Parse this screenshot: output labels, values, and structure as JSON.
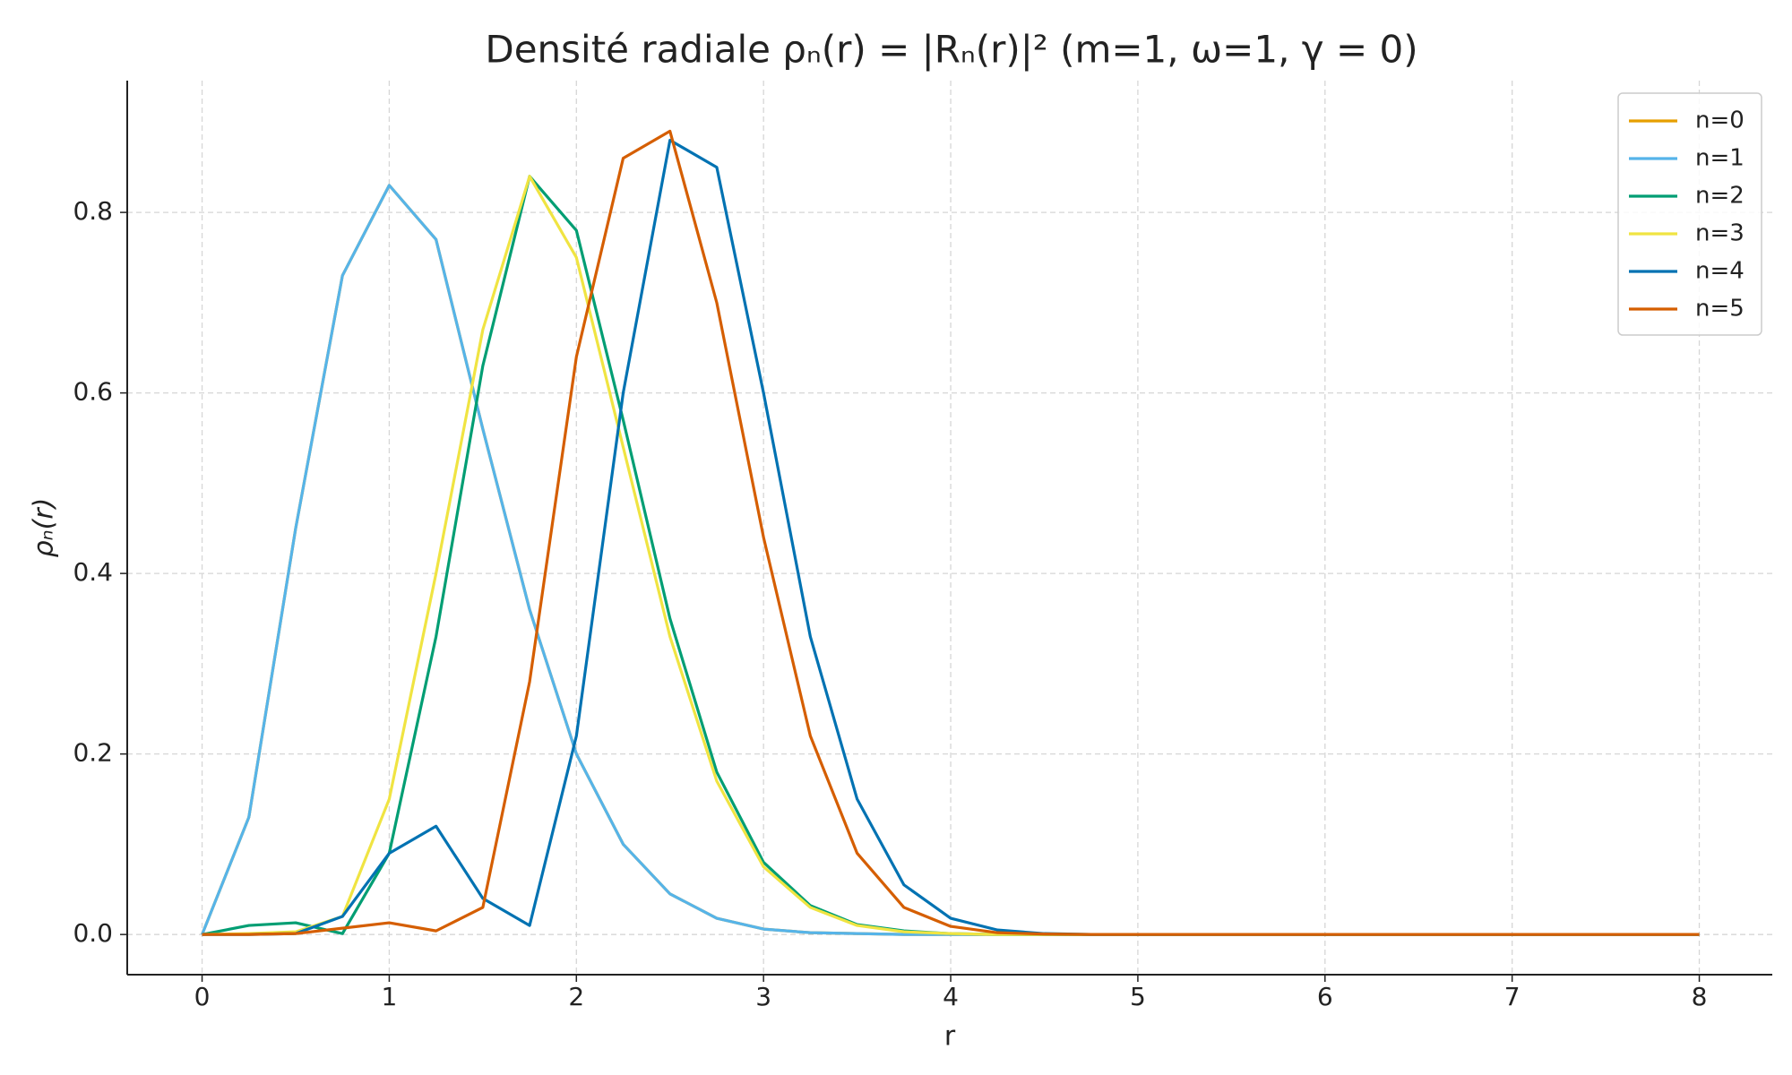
{
  "chart_data": {
    "type": "line",
    "title": "Densité radiale ρₙ(r) = |Rₙ(r)|² (m=1, ω=1, γ = 0)",
    "x_label": "r",
    "y_label": "ρₙ(r)",
    "x": [
      0,
      0.25,
      0.5,
      0.75,
      1,
      1.25,
      1.5,
      1.75,
      2,
      2.25,
      2.5,
      2.75,
      3,
      3.25,
      3.5,
      3.75,
      4,
      4.25,
      4.5,
      4.75,
      5,
      5.25,
      5.5,
      5.75,
      6,
      6.25,
      6.5,
      6.75,
      7,
      7.25,
      7.5,
      7.75,
      8
    ],
    "series": [
      {
        "name": "n=0",
        "color": "#E69F00",
        "values": [
          0,
          0.13,
          0.45,
          0.73,
          0.83,
          0.77,
          0.56,
          0.36,
          0.2,
          0.1,
          0.045,
          0.018,
          0.006,
          0.002,
          0.001,
          0,
          0,
          0,
          0,
          0,
          0,
          0,
          0,
          0,
          0,
          0,
          0,
          0,
          0,
          0,
          0,
          0,
          0
        ]
      },
      {
        "name": "n=1",
        "color": "#56B4E9",
        "values": [
          0,
          0.13,
          0.45,
          0.73,
          0.83,
          0.77,
          0.56,
          0.36,
          0.2,
          0.1,
          0.045,
          0.018,
          0.006,
          0.002,
          0.001,
          0,
          0,
          0,
          0,
          0,
          0,
          0,
          0,
          0,
          0,
          0,
          0,
          0,
          0,
          0,
          0,
          0,
          0
        ]
      },
      {
        "name": "n=2",
        "color": "#009E73",
        "values": [
          0,
          0.01,
          0.013,
          0.001,
          0.09,
          0.33,
          0.63,
          0.84,
          0.78,
          0.57,
          0.35,
          0.18,
          0.08,
          0.032,
          0.011,
          0.004,
          0.001,
          0,
          0,
          0,
          0,
          0,
          0,
          0,
          0,
          0,
          0,
          0,
          0,
          0,
          0,
          0,
          0
        ]
      },
      {
        "name": "n=3",
        "color": "#F0E442",
        "values": [
          0,
          0.001,
          0.003,
          0.02,
          0.15,
          0.4,
          0.67,
          0.84,
          0.75,
          0.54,
          0.33,
          0.17,
          0.075,
          0.03,
          0.01,
          0.003,
          0.001,
          0,
          0,
          0,
          0,
          0,
          0,
          0,
          0,
          0,
          0,
          0,
          0,
          0,
          0,
          0,
          0
        ]
      },
      {
        "name": "n=4",
        "color": "#0072B2",
        "values": [
          0,
          0,
          0.001,
          0.02,
          0.09,
          0.12,
          0.04,
          0.01,
          0.22,
          0.6,
          0.88,
          0.85,
          0.6,
          0.33,
          0.15,
          0.055,
          0.018,
          0.005,
          0.001,
          0,
          0,
          0,
          0,
          0,
          0,
          0,
          0,
          0,
          0,
          0,
          0,
          0,
          0
        ]
      },
      {
        "name": "n=5",
        "color": "#D55E00",
        "values": [
          0,
          0,
          0.001,
          0.007,
          0.013,
          0.004,
          0.03,
          0.28,
          0.64,
          0.86,
          0.89,
          0.7,
          0.44,
          0.22,
          0.09,
          0.03,
          0.009,
          0.002,
          0.0005,
          0,
          0,
          0,
          0,
          0,
          0,
          0,
          0,
          0,
          0,
          0,
          0,
          0,
          0
        ]
      }
    ],
    "xlim": [
      -0.4,
      8.39
    ],
    "ylim": [
      -0.0445,
      0.946
    ],
    "xticks": [
      0,
      1,
      2,
      3,
      4,
      5,
      6,
      7,
      8
    ],
    "yticks": [
      {
        "value": 0,
        "label": "0.0"
      },
      0.2,
      0.4,
      0.6,
      0.8
    ],
    "grid": true,
    "legend": "upper right"
  }
}
